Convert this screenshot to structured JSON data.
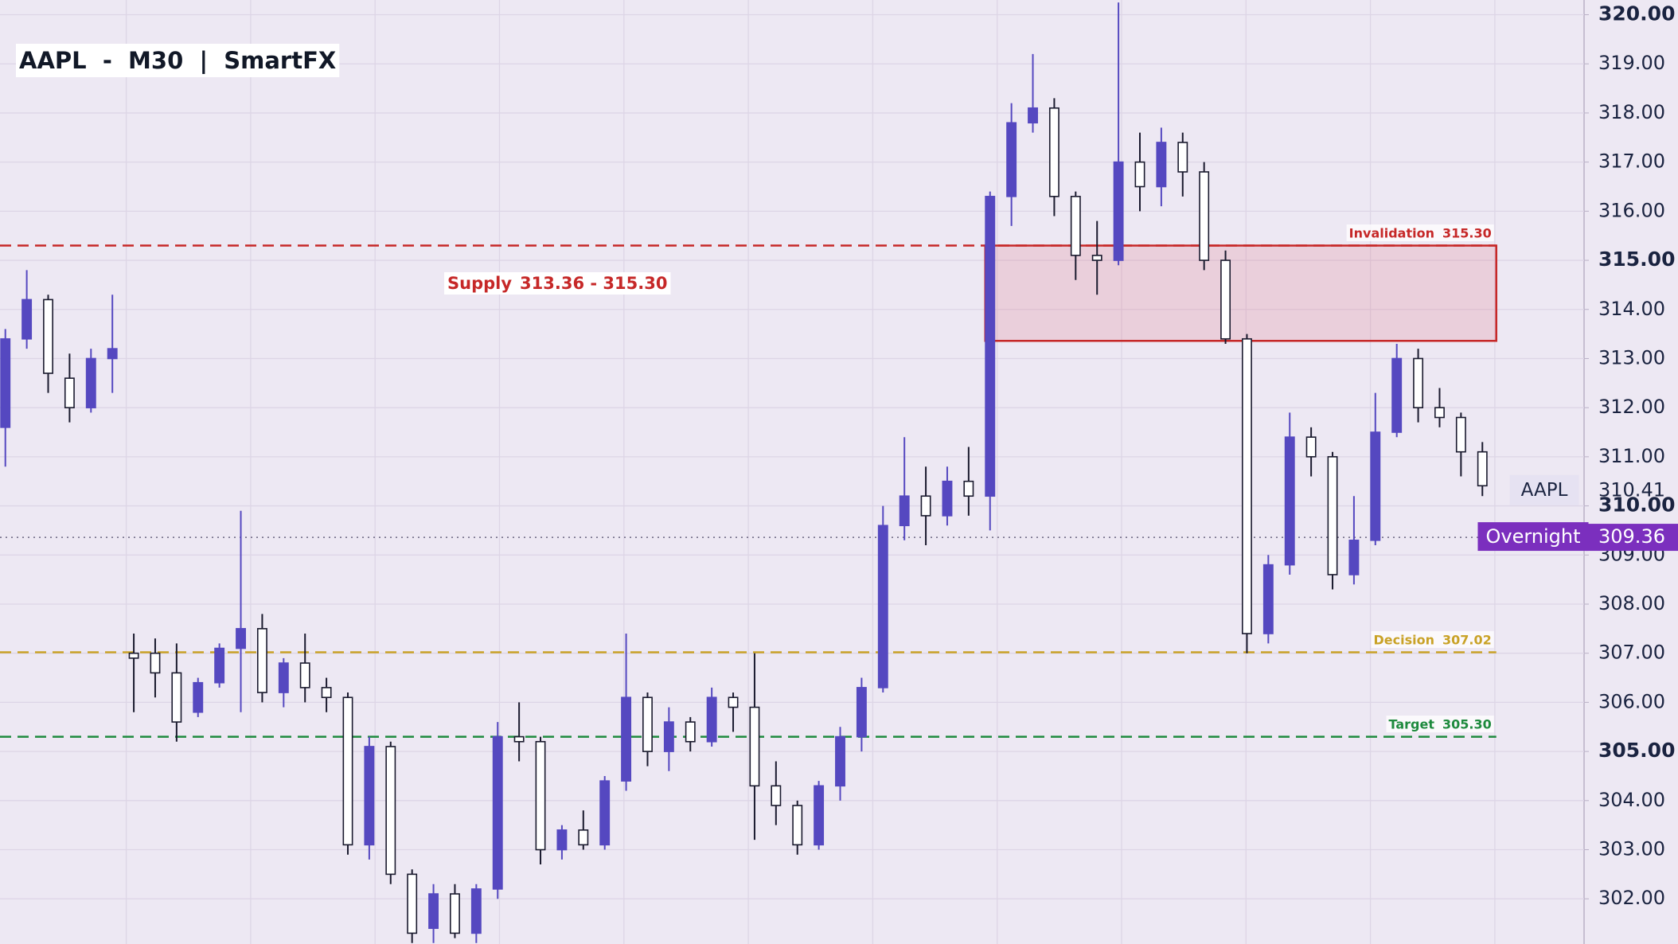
{
  "chart_data": {
    "type": "candlestick",
    "title": "AAPL  -  M30  |  SmartFX",
    "open": [
      311.6,
      313.4,
      314.2,
      312.6,
      312.0,
      313.0,
      307.0,
      307.0,
      306.6,
      305.8,
      306.4,
      307.1,
      307.5,
      306.2,
      306.8,
      306.3,
      306.1,
      303.1,
      305.1,
      302.5,
      301.4,
      302.1,
      301.3,
      302.2,
      305.3,
      305.2,
      303.0,
      303.4,
      303.1,
      304.4,
      306.1,
      305.0,
      305.6,
      305.2,
      306.1,
      305.9,
      304.3,
      303.9,
      303.1,
      304.3,
      305.3,
      306.3,
      309.6,
      310.2,
      309.8,
      310.5,
      310.2,
      316.3,
      317.8,
      318.1,
      316.3,
      315.1,
      315.0,
      317.0,
      316.5,
      317.4,
      316.8,
      315.0,
      313.4,
      307.4,
      308.8,
      311.4,
      311.0,
      308.6,
      309.3,
      311.5,
      313.0,
      312.0,
      311.8,
      311.1
    ],
    "high": [
      313.6,
      314.8,
      314.3,
      313.1,
      313.2,
      314.3,
      307.4,
      307.3,
      307.2,
      306.5,
      307.2,
      309.9,
      307.8,
      306.9,
      307.4,
      306.5,
      306.2,
      305.3,
      305.2,
      302.6,
      302.3,
      302.3,
      302.3,
      305.6,
      306.0,
      305.3,
      303.5,
      303.8,
      304.5,
      307.4,
      306.2,
      305.9,
      305.7,
      306.3,
      306.2,
      307.0,
      304.8,
      304.0,
      304.4,
      305.5,
      306.5,
      310.0,
      311.4,
      310.8,
      310.8,
      311.2,
      316.4,
      318.2,
      319.2,
      318.3,
      316.4,
      315.8,
      320.25,
      317.6,
      317.7,
      317.6,
      317.0,
      315.2,
      313.5,
      309.0,
      311.9,
      311.6,
      311.1,
      310.2,
      312.3,
      313.3,
      313.2,
      312.4,
      311.9,
      311.3
    ],
    "low": [
      310.8,
      313.2,
      312.3,
      311.7,
      311.9,
      312.3,
      305.8,
      306.1,
      305.2,
      305.7,
      306.3,
      305.8,
      306.0,
      305.9,
      306.0,
      305.8,
      302.9,
      302.8,
      302.3,
      301.1,
      301.1,
      301.2,
      301.1,
      302.0,
      304.8,
      302.7,
      302.8,
      303.0,
      303.0,
      304.2,
      304.7,
      304.6,
      305.0,
      305.1,
      305.4,
      303.2,
      303.5,
      302.9,
      303.0,
      304.0,
      305.0,
      306.2,
      309.3,
      309.2,
      309.6,
      309.8,
      309.5,
      315.7,
      317.6,
      315.9,
      314.6,
      314.3,
      314.9,
      316.0,
      316.1,
      316.3,
      314.8,
      313.3,
      307.0,
      307.2,
      308.6,
      310.6,
      308.3,
      308.4,
      309.2,
      311.4,
      311.7,
      311.6,
      310.6,
      310.2
    ],
    "close": [
      313.4,
      314.2,
      312.7,
      312.0,
      313.0,
      313.2,
      306.9,
      306.6,
      305.6,
      306.4,
      307.1,
      307.5,
      306.2,
      306.8,
      306.3,
      306.1,
      303.1,
      305.1,
      302.5,
      301.3,
      302.1,
      301.3,
      302.2,
      305.3,
      305.2,
      303.0,
      303.4,
      303.1,
      304.4,
      306.1,
      305.0,
      305.6,
      305.2,
      306.1,
      305.9,
      304.3,
      303.9,
      303.1,
      304.3,
      305.3,
      306.3,
      309.6,
      310.2,
      309.8,
      310.5,
      310.2,
      316.3,
      317.8,
      318.1,
      316.3,
      315.1,
      315.0,
      317.0,
      316.5,
      317.4,
      316.8,
      315.0,
      313.4,
      307.4,
      308.8,
      311.4,
      311.0,
      308.6,
      309.3,
      311.5,
      313.0,
      312.0,
      311.8,
      311.1,
      310.41
    ],
    "up_color": "#5548c0",
    "down_color": "#ffffff",
    "ylim": [
      301.08,
      320.3
    ],
    "yticks": [
      {
        "value": 302,
        "label": "302.00"
      },
      {
        "value": 303,
        "label": "303.00"
      },
      {
        "value": 304,
        "label": "304.00"
      },
      {
        "value": 305,
        "label": "305.00"
      },
      {
        "value": 306,
        "label": "306.00"
      },
      {
        "value": 307,
        "label": "307.00"
      },
      {
        "value": 308,
        "label": "308.00"
      },
      {
        "value": 309,
        "label": "309.00"
      },
      {
        "value": 310,
        "label": "310.00"
      },
      {
        "value": 311,
        "label": "311.00"
      },
      {
        "value": 312,
        "label": "312.00"
      },
      {
        "value": 313,
        "label": "313.00"
      },
      {
        "value": 314,
        "label": "314.00"
      },
      {
        "value": 315,
        "label": "315.00"
      },
      {
        "value": 316,
        "label": "316.00"
      },
      {
        "value": 317,
        "label": "317.00"
      },
      {
        "value": 318,
        "label": "318.00"
      },
      {
        "value": 319,
        "label": "319.00"
      },
      {
        "value": 320,
        "label": "320.00"
      }
    ],
    "grid": true,
    "supply": {
      "name": "Supply",
      "low": 313.36,
      "high": 315.3,
      "value_label": "313.36 - 315.30",
      "color": "#c62828"
    },
    "levels": [
      {
        "name": "Invalidation",
        "value": 315.3,
        "value_label": "315.30",
        "color": "#c62828"
      },
      {
        "name": "Decision",
        "value": 307.02,
        "value_label": "307.02",
        "color": "#c9a227"
      },
      {
        "name": "Target",
        "value": 305.3,
        "value_label": "305.30",
        "color": "#1e8a3e"
      }
    ],
    "last_price": {
      "name": "AAPL",
      "value": 310.41
    },
    "overnight": {
      "name": "Overnight",
      "value": 309.36,
      "color": "#7b2fbe"
    }
  }
}
